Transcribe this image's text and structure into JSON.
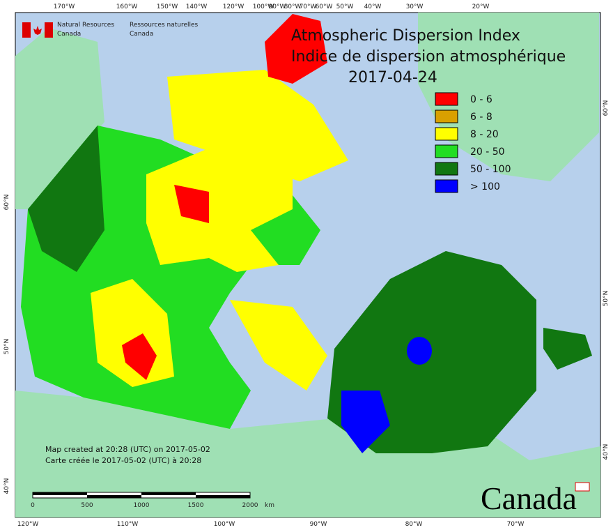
{
  "header": {
    "agency_en": [
      "Natural Resources",
      "Canada"
    ],
    "agency_fr": [
      "Ressources naturelles",
      "Canada"
    ]
  },
  "title": {
    "line1": "Atmospheric Dispersion Index",
    "line2": "Indice de dispersion atmosphérique",
    "date": "2017-04-24"
  },
  "legend": [
    {
      "label": "0 - 6",
      "color": "#ff0000"
    },
    {
      "label": "6 - 8",
      "color": "#d9a000"
    },
    {
      "label": "8 - 20",
      "color": "#ffff00"
    },
    {
      "label": "20 - 50",
      "color": "#22dd22"
    },
    {
      "label": "50 - 100",
      "color": "#117711"
    },
    {
      "label": "> 100",
      "color": "#0000ff"
    }
  ],
  "top_longitudes": [
    "170°W",
    "160°W",
    "150°W",
    "140°W",
    "120°W",
    "100°W",
    "90°W",
    "80°W",
    "70°W",
    "60°W",
    "50°W",
    "40°W",
    "30°W",
    "20°W"
  ],
  "bottom_longitudes": [
    "120°W",
    "110°W",
    "100°W",
    "90°W",
    "80°W",
    "70°W"
  ],
  "left_latitudes": [
    "60°N",
    "50°N",
    "40°N"
  ],
  "right_latitudes": [
    "60°N",
    "50°N",
    "40°N"
  ],
  "credit": [
    "Map created at 20:28 (UTC) on 2017-05-02",
    "Carte créée le 2017-05-02 (UTC) à 20:28"
  ],
  "scale_bar": {
    "ticks": [
      "0",
      "500",
      "1000",
      "1500",
      "2000"
    ],
    "unit": "km"
  },
  "wordmark": "Canada"
}
